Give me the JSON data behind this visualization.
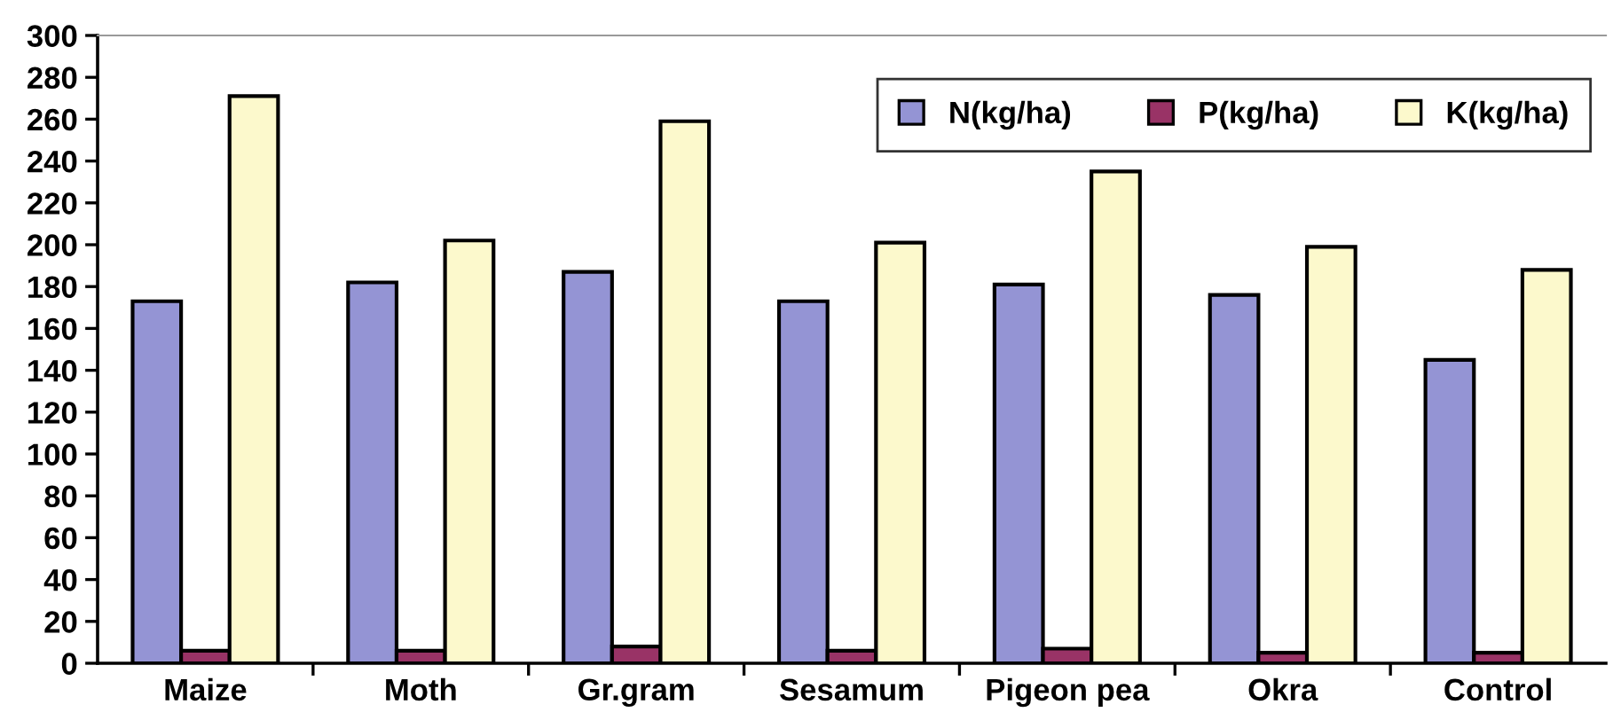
{
  "chart_data": {
    "type": "bar",
    "categories": [
      "Maize",
      "Moth",
      "Gr.gram",
      "Sesamum",
      "Pigeon pea",
      "Okra",
      "Control"
    ],
    "series": [
      {
        "name": "N(kg/ha)",
        "color": "#9494d4",
        "values": [
          173,
          182,
          187,
          173,
          181,
          176,
          145
        ]
      },
      {
        "name": "P(kg/ha)",
        "color": "#993366",
        "values": [
          6,
          6,
          8,
          6,
          7,
          5,
          5
        ]
      },
      {
        "name": "K(kg/ha)",
        "color": "#fcf9cc",
        "values": [
          271,
          202,
          259,
          201,
          235,
          199,
          188
        ]
      }
    ],
    "ylim": [
      0,
      300
    ],
    "yticks": [
      0,
      20,
      40,
      60,
      80,
      100,
      120,
      140,
      160,
      180,
      200,
      220,
      240,
      260,
      280,
      300
    ],
    "grid": false,
    "legend": "top right"
  }
}
